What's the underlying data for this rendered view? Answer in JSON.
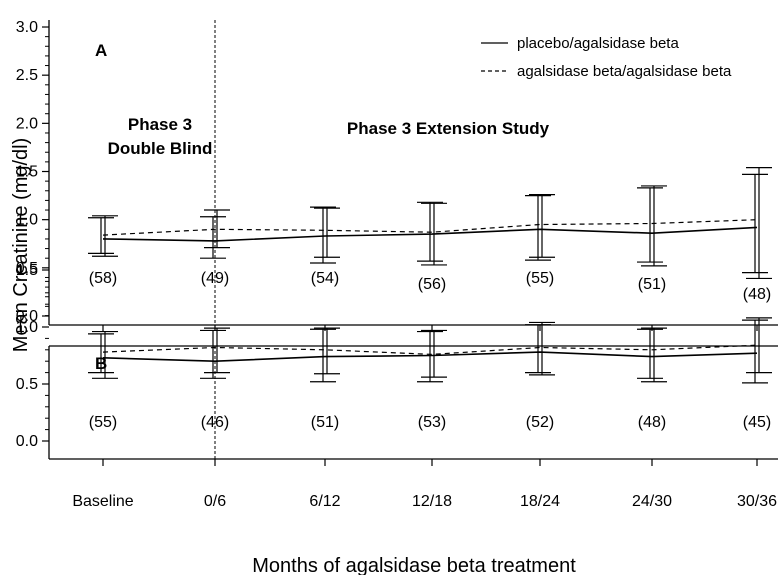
{
  "chart_data": {
    "type": "line",
    "xlabel": "Months of agalsidase beta treatment",
    "ylabel": "Mean Creatinine (mg/dl)",
    "categories": [
      "Baseline",
      "0/6",
      "6/12",
      "12/18",
      "18/24",
      "24/30",
      "30/36"
    ],
    "legend": {
      "placement": "top-right",
      "entries": [
        {
          "label": "placebo/agalsidase beta",
          "style": "solid"
        },
        {
          "label": "agalsidase beta/agalsidase beta",
          "style": "dashed"
        }
      ]
    },
    "annotations": {
      "phase3": [
        "Phase 3",
        "Double Blind"
      ],
      "extension": "Phase 3 Extension Study"
    },
    "panels": [
      {
        "label": "A",
        "ylim": [
          0,
          3.0
        ],
        "yticks": [
          "0.0",
          "0.5",
          "1.0",
          "1.5",
          "2.0",
          "2.5",
          "3.0"
        ],
        "n": [
          "(58)",
          "(49)",
          "(54)",
          "(56)",
          "(55)",
          "(51)",
          "(48)"
        ],
        "series": [
          {
            "name": "placebo/agalsidase beta",
            "style": "solid",
            "values": [
              0.8,
              0.78,
              0.83,
              0.85,
              0.9,
              0.86,
              0.92
            ],
            "lower": [
              0.65,
              0.6,
              0.55,
              0.57,
              0.58,
              0.56,
              0.45
            ],
            "upper": [
              1.02,
              1.03,
              1.13,
              1.18,
              1.25,
              1.33,
              1.47
            ]
          },
          {
            "name": "agalsidase beta/agalsidase beta",
            "style": "dashed",
            "values": [
              0.84,
              0.9,
              0.89,
              0.87,
              0.95,
              0.96,
              1.0
            ],
            "lower": [
              0.62,
              0.71,
              0.61,
              0.53,
              0.61,
              0.52,
              0.39
            ],
            "upper": [
              1.04,
              1.1,
              1.12,
              1.17,
              1.26,
              1.35,
              1.54
            ]
          }
        ]
      },
      {
        "label": "B",
        "ylim": [
          0,
          1.5
        ],
        "yticks": [
          "0.0",
          "0.5",
          "1.0",
          "1.5"
        ],
        "n": [
          "(55)",
          "(46)",
          "(51)",
          "(53)",
          "(52)",
          "(48)",
          "(45)"
        ],
        "series": [
          {
            "name": "placebo/agalsidase beta",
            "style": "solid",
            "values": [
              0.73,
              0.7,
              0.74,
              0.75,
              0.78,
              0.74,
              0.77
            ],
            "lower": [
              0.6,
              0.55,
              0.52,
              0.52,
              0.6,
              0.55,
              0.51
            ],
            "upper": [
              0.94,
              0.97,
              0.98,
              0.96,
              1.02,
              0.98,
              1.06
            ]
          },
          {
            "name": "agalsidase beta/agalsidase beta",
            "style": "dashed",
            "values": [
              0.78,
              0.82,
              0.8,
              0.76,
              0.82,
              0.8,
              0.84
            ],
            "lower": [
              0.55,
              0.6,
              0.59,
              0.56,
              0.58,
              0.52,
              0.6
            ],
            "upper": [
              0.96,
              0.99,
              0.99,
              0.97,
              1.04,
              0.99,
              1.08
            ]
          }
        ]
      }
    ]
  }
}
